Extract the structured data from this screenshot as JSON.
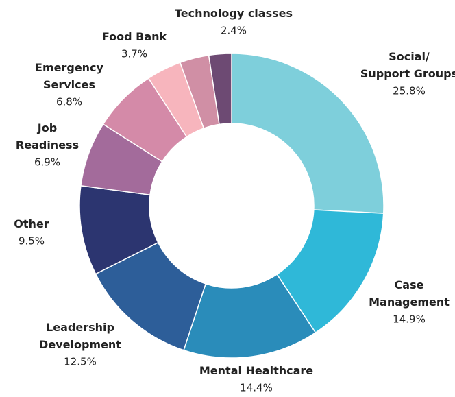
{
  "chart_data": {
    "type": "donut",
    "categories": [
      "Social/\nSupport Groups",
      "Case\nManagement",
      "Mental Healthcare",
      "Leadership\nDevelopment",
      "Other",
      "Job\nReadiness",
      "Emergency\nServices",
      "Food Bank",
      null,
      "Technology classes"
    ],
    "values": [
      25.8,
      14.9,
      14.4,
      12.5,
      9.5,
      6.9,
      6.8,
      3.7,
      3.1,
      2.4
    ],
    "value_labels": [
      "25.8%",
      "14.9%",
      "14.4%",
      "12.5%",
      "9.5%",
      "6.9%",
      "6.8%",
      "3.7%",
      null,
      "2.4%"
    ],
    "colors": [
      "#7ecfdb",
      "#2fb8d8",
      "#2a8cba",
      "#2d5e99",
      "#2c3570",
      "#a36b9b",
      "#d48aa8",
      "#f7b5bd",
      "#d08fa5",
      "#6d4a73"
    ]
  }
}
